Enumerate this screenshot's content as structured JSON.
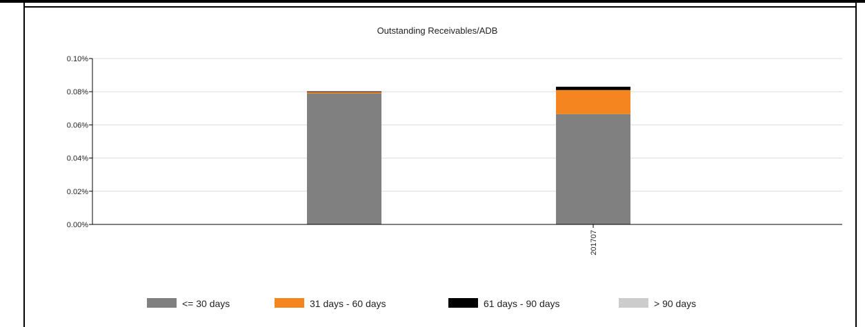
{
  "chart_data": {
    "type": "bar",
    "stacked": true,
    "title": "Outstanding Receivables/ADB",
    "xlabel": "",
    "ylabel": "",
    "categories": [
      "",
      "201707"
    ],
    "ylim": [
      0,
      0.1
    ],
    "yticks": [
      "0.00%",
      "0.02%",
      "0.04%",
      "0.06%",
      "0.08%",
      "0.10%"
    ],
    "ytick_values": [
      0,
      0.02,
      0.04,
      0.06,
      0.08,
      0.1
    ],
    "grid": true,
    "legend_position": "bottom",
    "series": [
      {
        "name": "<= 30 days",
        "color": "#808080",
        "values": [
          0.079,
          0.0665
        ]
      },
      {
        "name": "31 days - 60 days",
        "color": "#f5861f",
        "values": [
          0.0008,
          0.0145
        ]
      },
      {
        "name": "61 days - 90 days",
        "color": "#000000",
        "values": [
          0.0004,
          0.002
        ]
      },
      {
        "name": "> 90 days",
        "color": "#cccccc",
        "values": [
          0,
          0
        ]
      }
    ]
  }
}
